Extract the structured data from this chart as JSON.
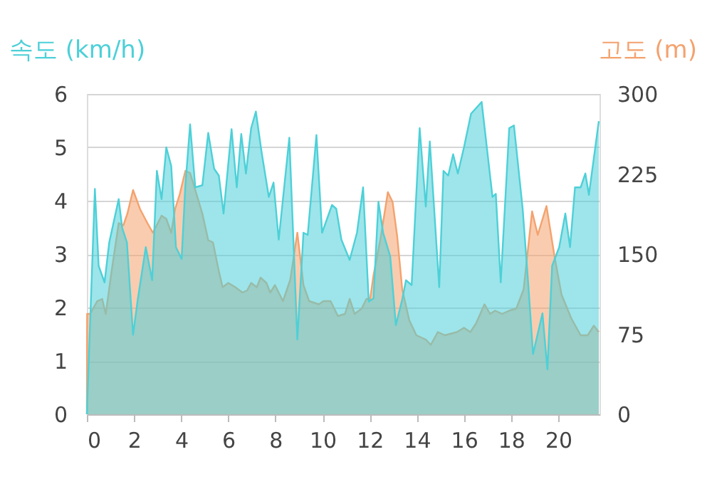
{
  "chart_data": {
    "type": "area",
    "ylabel": "속도 (km/h)",
    "y2label": "고도 (m)",
    "xlim": [
      0,
      21.75
    ],
    "xticks": [
      0,
      2,
      4,
      6,
      8,
      10,
      12,
      14,
      16,
      18,
      20
    ],
    "ylim": [
      0,
      6
    ],
    "yticks": [
      0,
      1,
      2,
      3,
      4,
      5,
      6
    ],
    "y2lim": [
      0,
      300
    ],
    "y2ticks": [
      0,
      75,
      150,
      225,
      300
    ],
    "grid": "y",
    "series": [
      {
        "axis": "y2",
        "color": "#f4a26e",
        "x": [
          0,
          0.01,
          0.14,
          0.44,
          0.65,
          0.8,
          1.05,
          1.35,
          1.55,
          1.72,
          1.96,
          2.26,
          2.57,
          2.8,
          3.17,
          3.37,
          3.58,
          3.74,
          3.94,
          4.18,
          4.38,
          4.6,
          4.9,
          5.15,
          5.35,
          5.6,
          5.76,
          6.0,
          6.3,
          6.6,
          6.8,
          6.97,
          7.21,
          7.37,
          7.62,
          7.78,
          7.98,
          8.32,
          8.63,
          8.93,
          9.19,
          9.43,
          9.84,
          10.04,
          10.34,
          10.65,
          10.95,
          11.15,
          11.36,
          11.66,
          11.86,
          12.02,
          12.16,
          12.47,
          12.77,
          12.97,
          13.17,
          13.38,
          13.68,
          13.98,
          14.38,
          14.59,
          14.89,
          15.19,
          15.7,
          16.0,
          16.27,
          16.51,
          16.87,
          17.11,
          17.32,
          17.62,
          17.92,
          18.22,
          18.53,
          18.89,
          19.13,
          19.5,
          19.84,
          20.14,
          20.55,
          20.95,
          21.25,
          21.51,
          21.72
        ],
        "values": [
          0,
          94,
          94,
          106,
          108,
          94,
          134,
          179,
          177,
          188,
          210,
          192,
          179,
          170,
          186,
          183,
          170,
          192,
          206,
          228,
          226,
          210,
          188,
          163,
          161,
          134,
          119,
          123,
          119,
          114,
          116,
          123,
          119,
          128,
          123,
          114,
          121,
          106,
          126,
          170,
          121,
          106,
          103,
          106,
          106,
          92,
          94,
          108,
          94,
          99,
          108,
          108,
          130,
          166,
          208,
          199,
          166,
          117,
          88,
          74,
          70,
          65,
          77,
          74,
          77,
          81,
          77,
          85,
          103,
          94,
          97,
          94,
          97,
          99,
          117,
          190,
          168,
          195,
          148,
          112,
          90,
          74,
          74,
          83,
          77
        ]
      },
      {
        "axis": "y",
        "color": "#4dd0d8",
        "x": [
          0,
          0.34,
          0.5,
          0.75,
          0.95,
          1.35,
          1.5,
          1.7,
          1.96,
          2.16,
          2.5,
          2.77,
          2.97,
          3.17,
          3.37,
          3.58,
          3.78,
          4.02,
          4.18,
          4.38,
          4.6,
          4.9,
          5.15,
          5.4,
          5.6,
          5.8,
          6.14,
          6.36,
          6.55,
          6.75,
          6.97,
          7.17,
          7.41,
          7.72,
          7.92,
          8.14,
          8.59,
          8.93,
          9.19,
          9.37,
          9.74,
          9.98,
          10.4,
          10.58,
          10.8,
          11.15,
          11.46,
          11.72,
          11.96,
          12.16,
          12.37,
          12.57,
          12.87,
          13.11,
          13.38,
          13.54,
          13.78,
          14.12,
          14.38,
          14.55,
          14.95,
          15.13,
          15.33,
          15.54,
          15.74,
          16.0,
          16.3,
          16.75,
          17.21,
          17.35,
          17.56,
          17.92,
          18.12,
          18.49,
          18.73,
          18.93,
          19.33,
          19.54,
          19.74,
          20.04,
          20.3,
          20.5,
          20.71,
          20.95,
          21.15,
          21.3,
          21.72
        ],
        "values": [
          0,
          4.22,
          2.78,
          2.47,
          3.22,
          4.03,
          3.49,
          3.22,
          1.49,
          2.15,
          3.13,
          2.51,
          4.56,
          4.03,
          5.0,
          4.65,
          3.13,
          2.91,
          4.29,
          5.43,
          4.25,
          4.29,
          5.27,
          4.6,
          4.47,
          3.76,
          5.34,
          4.25,
          5.25,
          4.51,
          5.36,
          5.67,
          4.92,
          4.07,
          4.34,
          3.27,
          5.18,
          1.4,
          3.4,
          3.36,
          5.23,
          3.4,
          3.92,
          3.85,
          3.27,
          2.89,
          3.4,
          4.25,
          2.11,
          2.17,
          3.98,
          3.4,
          2.96,
          1.67,
          2.15,
          2.51,
          2.42,
          5.36,
          3.89,
          5.11,
          2.38,
          4.56,
          4.47,
          4.87,
          4.51,
          5.0,
          5.63,
          5.85,
          4.07,
          4.13,
          2.47,
          5.36,
          5.41,
          3.85,
          2.42,
          1.13,
          1.89,
          0.84,
          2.78,
          3.13,
          3.76,
          3.13,
          4.25,
          4.25,
          4.51,
          4.11,
          5.49
        ]
      }
    ]
  }
}
